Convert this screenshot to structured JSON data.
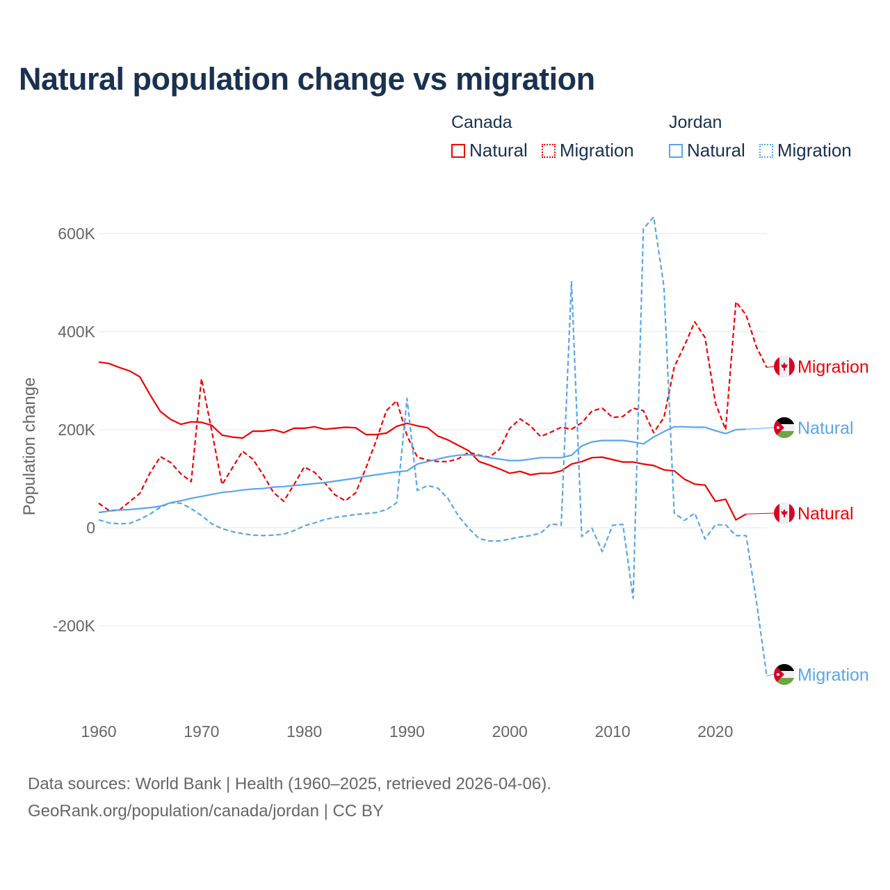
{
  "title": "Natural population change vs migration",
  "legend": {
    "groups": [
      {
        "name": "Canada",
        "items": [
          {
            "label": "Natural",
            "style": "solid",
            "color": "#ee0000"
          },
          {
            "label": "Migration",
            "style": "dotted",
            "color": "#ee0000"
          }
        ]
      },
      {
        "name": "Jordan",
        "items": [
          {
            "label": "Natural",
            "style": "solid",
            "color": "#5aa5ea"
          },
          {
            "label": "Migration",
            "style": "dotted",
            "color": "#5aa5ea"
          }
        ]
      }
    ]
  },
  "footer": {
    "line1": "Data sources: World Bank | Health (1960–2025, retrieved 2026-04-06).",
    "line2": "GeoRank.org/population/canada/jordan | CC BY"
  },
  "chart_data": {
    "type": "line",
    "title": "Natural population change vs migration",
    "xlabel": "",
    "ylabel": "Population change",
    "xlim": [
      1960,
      2025
    ],
    "ylim": [
      -300000,
      600000
    ],
    "x_ticks": [
      1960,
      1970,
      1980,
      1990,
      2000,
      2010,
      2020
    ],
    "x_tick_labels": [
      "1960",
      "1970",
      "1980",
      "1990",
      "2000",
      "2010",
      "2020"
    ],
    "y_ticks": [
      -200000,
      0,
      200000,
      400000,
      600000
    ],
    "y_tick_labels": [
      "-200K",
      "0",
      "200K",
      "400K",
      "600K"
    ],
    "grid": "horizontal",
    "legend_position": "top-right",
    "series": [
      {
        "name": "Canada Natural",
        "country": "Canada",
        "kind": "Natural",
        "end_label": "Natural",
        "color": "#ee0000",
        "dashed": false,
        "start_year": 1960,
        "values": [
          338000,
          335000,
          327000,
          320000,
          308000,
          271000,
          237000,
          221000,
          211000,
          216000,
          215000,
          209000,
          189000,
          185000,
          183000,
          197000,
          197000,
          200000,
          194000,
          203000,
          203000,
          206000,
          201000,
          203000,
          205000,
          204000,
          190000,
          190000,
          193000,
          207000,
          213000,
          208000,
          204000,
          187000,
          179000,
          168000,
          157000,
          135000,
          128000,
          120000,
          111000,
          115000,
          108000,
          111000,
          111000,
          116000,
          130000,
          135000,
          143000,
          144000,
          139000,
          134000,
          134000,
          130000,
          127000,
          118000,
          116000,
          99000,
          89000,
          87000,
          54000,
          58000,
          16000,
          28000
        ]
      },
      {
        "name": "Canada Migration",
        "country": "Canada",
        "kind": "Migration",
        "end_label": "Migration",
        "color": "#ee0000",
        "dashed": true,
        "start_year": 1960,
        "values": [
          50000,
          35000,
          36000,
          53000,
          70000,
          112000,
          145000,
          133000,
          110000,
          94000,
          304000,
          197000,
          88000,
          122000,
          156000,
          140000,
          108000,
          72000,
          54000,
          88000,
          124000,
          113000,
          91000,
          67000,
          55000,
          71000,
          122000,
          178000,
          239000,
          259000,
          188000,
          144000,
          138000,
          135000,
          135000,
          141000,
          154000,
          148000,
          144000,
          160000,
          203000,
          222000,
          208000,
          186000,
          195000,
          205000,
          201000,
          214000,
          238000,
          244000,
          225000,
          227000,
          244000,
          239000,
          194000,
          225000,
          328000,
          372000,
          420000,
          388000,
          255000,
          200000,
          461000,
          434000,
          369000,
          327000
        ]
      },
      {
        "name": "Jordan Natural",
        "country": "Jordan",
        "kind": "Natural",
        "end_label": "Natural",
        "color": "#5aa5ea",
        "dashed": false,
        "start_year": 1960,
        "values": [
          31000,
          34000,
          36000,
          37000,
          39000,
          41000,
          44000,
          51000,
          55000,
          60000,
          64000,
          68000,
          72000,
          74000,
          77000,
          79000,
          80000,
          83000,
          84000,
          86000,
          88000,
          90000,
          92000,
          95000,
          98000,
          101000,
          105000,
          108000,
          111000,
          114000,
          116000,
          130000,
          135000,
          140000,
          145000,
          148000,
          149000,
          147000,
          143000,
          140000,
          137000,
          137000,
          140000,
          143000,
          143000,
          143000,
          148000,
          167000,
          175000,
          178000,
          178000,
          178000,
          175000,
          171000,
          185000,
          196000,
          206000,
          206000,
          205000,
          205000,
          198000,
          192000,
          200000,
          201000
        ]
      },
      {
        "name": "Jordan Migration",
        "country": "Jordan",
        "kind": "Migration",
        "end_label": "Migration",
        "color": "#5aa5ea",
        "dashed": true,
        "start_year": 1960,
        "values": [
          16000,
          10000,
          8000,
          9000,
          17000,
          28000,
          42000,
          51000,
          50000,
          39000,
          25000,
          8000,
          -2000,
          -8000,
          -12000,
          -15000,
          -16000,
          -15000,
          -13000,
          -6000,
          4000,
          10000,
          17000,
          21000,
          24000,
          27000,
          29000,
          31000,
          37000,
          51000,
          264000,
          76000,
          86000,
          81000,
          59000,
          24000,
          -1000,
          -22000,
          -27000,
          -27000,
          -23000,
          -19000,
          -16000,
          -11000,
          8000,
          5000,
          502000,
          -18000,
          -1000,
          -49000,
          5000,
          7000,
          -144000,
          610000,
          634000,
          491000,
          30000,
          15000,
          30000,
          -23000,
          6000,
          6000,
          -16000,
          -16000,
          -150000,
          -302000
        ]
      }
    ]
  }
}
